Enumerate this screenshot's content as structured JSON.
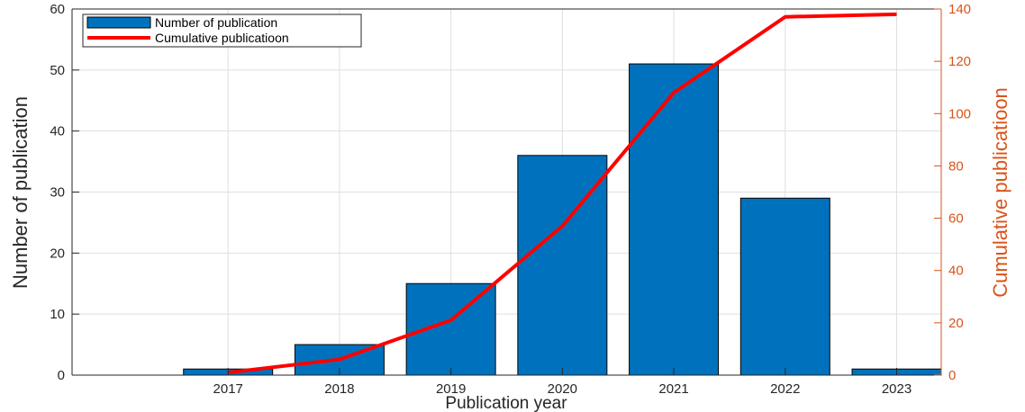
{
  "chart_data": {
    "type": "bar",
    "categories": [
      "2017",
      "2018",
      "2019",
      "2020",
      "2021",
      "2022",
      "2023"
    ],
    "series": [
      {
        "name": "Number of publication",
        "type": "bar",
        "axis": "left",
        "color": "#0072BD",
        "values": [
          1,
          5,
          15,
          36,
          51,
          29,
          1
        ]
      },
      {
        "name": "Cumulative publicatioon",
        "type": "line",
        "axis": "right",
        "color": "#FF0000",
        "values": [
          1,
          6,
          21,
          57,
          108,
          137,
          138
        ]
      }
    ],
    "xlabel": "Publication year",
    "ylabel": "Number of publication",
    "ylabel_right": "Cumulative publicatioon",
    "ylim": [
      0,
      60
    ],
    "ylim_right": [
      0,
      140
    ],
    "yticks": [
      0,
      10,
      20,
      30,
      40,
      50,
      60
    ],
    "yticks_right": [
      0,
      20,
      40,
      60,
      80,
      100,
      120,
      140
    ],
    "grid": true,
    "legend_position": "top-left",
    "right_axis_color": "#D95319"
  }
}
